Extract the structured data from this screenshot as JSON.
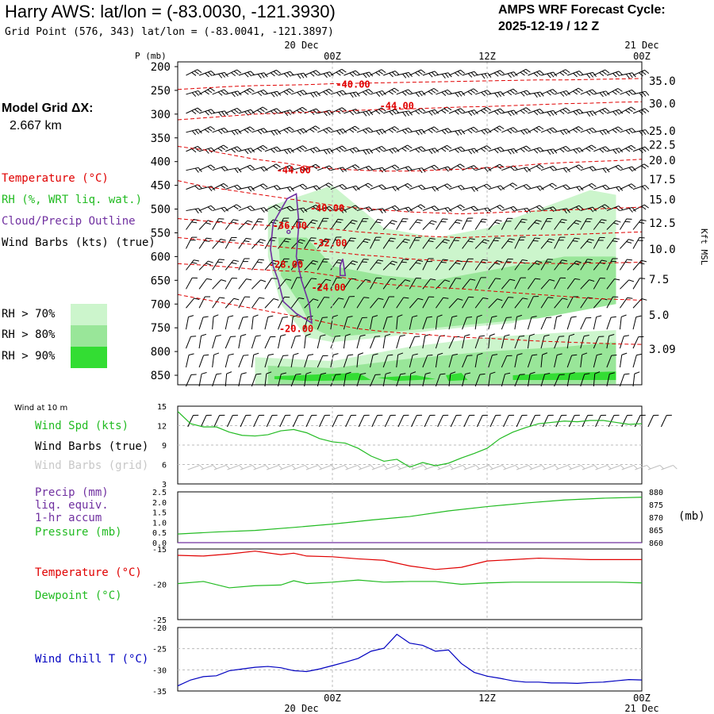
{
  "header": {
    "title": "Harry AWS:  lat/lon = (-83.0030, -121.3930)",
    "grid_point": "Grid Point (576, 343) lat/lon = (-83.0041, -121.3897)",
    "cycle_line1": "AMPS WRF Forecast Cycle:",
    "cycle_line2": "2025-12-19 / 12  Z",
    "model_grid_line1": "Model Grid ΔX:",
    "model_grid_line2": "2.667 km"
  },
  "time_axis": {
    "top_dates": [
      "20 Dec",
      "21 Dec"
    ],
    "top_hours": [
      "00Z",
      "12Z",
      "00Z"
    ],
    "bottom_hours": [
      "00Z",
      "12Z",
      "00Z"
    ],
    "bottom_dates": [
      "20 Dec",
      "21 Dec"
    ],
    "x_range_hours": [
      0,
      36
    ],
    "tick_hours": [
      12,
      24,
      36
    ],
    "tick_labels": [
      "00Z",
      "12Z",
      "00Z"
    ]
  },
  "legend_upper": {
    "temperature": "Temperature (°C)",
    "rh": "RH (%, WRT liq. wat.)",
    "cloud": "Cloud/Precip Outline",
    "wind": "Wind Barbs (kts) (true)",
    "rh70": "RH > 70%",
    "rh80": "RH > 80%",
    "rh90": "RH > 90%",
    "colors": {
      "temp": "#e00000",
      "rh": "#c0c0c0",
      "cloud": "#7030a0",
      "rh70": "#ccf5cc",
      "rh80": "#99e699",
      "rh90": "#33dd33"
    }
  },
  "chart_data": [
    {
      "type": "heatmap",
      "title": "Vertical cross-section (RH, temperature, cloud outline, wind barbs)",
      "ylabel_left": "P (mb)",
      "ylabel_right": "Kft MSL",
      "pressure_ticks": [
        200,
        250,
        300,
        350,
        400,
        450,
        500,
        550,
        600,
        650,
        700,
        750,
        800,
        850
      ],
      "kft_ticks": [
        "35.0",
        "30.0",
        "25.0",
        "22.5",
        "20.0",
        "17.5",
        "15.0",
        "12.5",
        "10.0",
        "7.5",
        "5.0",
        "3.09"
      ],
      "kft_levels_mb": [
        230,
        278,
        335,
        365,
        397,
        437,
        480,
        529,
        584,
        648,
        723,
        795
      ],
      "ylim": [
        870,
        190
      ],
      "temperature_contour_labels": [
        {
          "value": "-40.00",
          "hour": 13.6,
          "p": 238
        },
        {
          "value": "-44.00",
          "hour": 17.0,
          "p": 283
        },
        {
          "value": "-44.00",
          "hour": 9.0,
          "p": 418
        },
        {
          "value": "-40.00",
          "hour": 11.6,
          "p": 498
        },
        {
          "value": "-36.00",
          "hour": 8.7,
          "p": 535
        },
        {
          "value": "-32.00",
          "hour": 11.8,
          "p": 572
        },
        {
          "value": "-28.00",
          "hour": 8.4,
          "p": 617
        },
        {
          "value": "-24.00",
          "hour": 11.7,
          "p": 665
        },
        {
          "value": "-20.00",
          "hour": 9.2,
          "p": 752
        }
      ],
      "temperature_lines_p": [
        [
          248,
          245,
          242,
          240,
          239,
          238,
          236,
          235,
          234,
          233,
          232,
          231,
          230,
          229,
          228,
          228,
          227,
          226,
          225
        ],
        [
          312,
          308,
          304,
          300,
          298,
          296,
          295,
          292,
          290,
          289,
          287,
          285,
          284,
          282,
          280,
          278,
          277,
          275,
          274
        ],
        [
          368,
          375,
          385,
          395,
          402,
          410,
          415,
          418,
          420,
          420,
          418,
          416,
          413,
          410,
          405,
          402,
          400,
          398,
          395
        ],
        [
          440,
          452,
          460,
          468,
          476,
          484,
          492,
          498,
          502,
          506,
          508,
          510,
          508,
          506,
          504,
          502,
          500,
          498,
          496
        ],
        [
          520,
          525,
          530,
          533,
          536,
          538,
          542,
          548,
          552,
          556,
          558,
          560,
          558,
          556,
          555,
          554,
          552,
          550,
          548
        ],
        [
          560,
          565,
          570,
          575,
          580,
          585,
          590,
          596,
          600,
          605,
          608,
          610,
          612,
          613,
          614,
          615,
          614,
          613,
          612
        ],
        [
          615,
          618,
          622,
          627,
          630,
          632,
          640,
          650,
          658,
          662,
          665,
          668,
          672,
          676,
          680,
          684,
          688,
          690,
          692
        ],
        [
          680,
          690,
          700,
          710,
          720,
          730,
          742,
          752,
          758,
          762,
          766,
          770,
          772,
          775,
          778,
          780,
          782,
          784,
          785
        ]
      ],
      "cloud_outline": [
        [
          7.2,
          585
        ],
        [
          7.4,
          530
        ],
        [
          8.5,
          478
        ],
        [
          9.2,
          468
        ],
        [
          9.4,
          530
        ],
        [
          9.2,
          600
        ],
        [
          9.6,
          650
        ],
        [
          10.2,
          700
        ],
        [
          10.4,
          740
        ],
        [
          9.2,
          720
        ],
        [
          8.2,
          695
        ],
        [
          7.8,
          650
        ],
        [
          7.4,
          620
        ],
        [
          7.2,
          585
        ]
      ],
      "cloud_dot": [
        8.6,
        548
      ],
      "cloud_small_outline": [
        [
          12.6,
          620
        ],
        [
          12.8,
          605
        ],
        [
          13.0,
          640
        ],
        [
          12.6,
          640
        ]
      ],
      "rh_regions": [
        {
          "level": 70,
          "points": [
            [
              7,
              495
            ],
            [
              12,
              450
            ],
            [
              16,
              540
            ],
            [
              20,
              560
            ],
            [
              24,
              540
            ],
            [
              28,
              500
            ],
            [
              32,
              460
            ],
            [
              34,
              470
            ],
            [
              34,
              650
            ],
            [
              30,
              700
            ],
            [
              26,
              740
            ],
            [
              20,
              755
            ],
            [
              16,
              770
            ],
            [
              12,
              780
            ],
            [
              10,
              770
            ],
            [
              8,
              700
            ],
            [
              7,
              600
            ]
          ]
        },
        {
          "level": 70,
          "points": [
            [
              6,
              812
            ],
            [
              12,
              820
            ],
            [
              18,
              790
            ],
            [
              24,
              770
            ],
            [
              30,
              760
            ],
            [
              34,
              755
            ],
            [
              34,
              870
            ],
            [
              6,
              870
            ]
          ]
        },
        {
          "level": 80,
          "points": [
            [
              7.8,
              560
            ],
            [
              10,
              560
            ],
            [
              12,
              620
            ],
            [
              16,
              640
            ],
            [
              20,
              650
            ],
            [
              26,
              620
            ],
            [
              30,
              600
            ],
            [
              34,
              600
            ],
            [
              34,
              700
            ],
            [
              28,
              730
            ],
            [
              22,
              745
            ],
            [
              16,
              760
            ],
            [
              12,
              770
            ],
            [
              10.4,
              750
            ],
            [
              9.5,
              700
            ],
            [
              8,
              640
            ]
          ]
        },
        {
          "level": 80,
          "points": [
            [
              7,
              830
            ],
            [
              12,
              835
            ],
            [
              18,
              815
            ],
            [
              24,
              800
            ],
            [
              30,
              790
            ],
            [
              34,
              780
            ],
            [
              34,
              868
            ],
            [
              7,
              868
            ]
          ]
        },
        {
          "level": 90,
          "points": [
            [
              7.5,
              852
            ],
            [
              11,
              848
            ],
            [
              14,
              845
            ],
            [
              15,
              860
            ],
            [
              10,
              862
            ],
            [
              7.5,
              858
            ]
          ]
        },
        {
          "level": 90,
          "points": [
            [
              15.5,
              855
            ],
            [
              18.5,
              850
            ],
            [
              20,
              858
            ],
            [
              17,
              862
            ]
          ]
        },
        {
          "level": 90,
          "points": [
            [
              20.8,
              850
            ],
            [
              22,
              845
            ],
            [
              22.5,
              860
            ],
            [
              21,
              862
            ]
          ]
        },
        {
          "level": 90,
          "points": [
            [
              26,
              850
            ],
            [
              30,
              845
            ],
            [
              34,
              842
            ],
            [
              34,
              860
            ],
            [
              26,
              860
            ]
          ]
        }
      ],
      "wind_barbs_levels_mb": [
        205,
        245,
        285,
        325,
        365,
        405,
        445,
        490,
        530,
        570,
        615,
        655,
        695,
        740,
        780,
        820,
        860
      ],
      "wind_barbs_hours_step": 1
    },
    {
      "type": "line",
      "title": "Wind at 10 m",
      "xlabel": "",
      "ylabel": "Wind Spd (kts)",
      "ylim": [
        3,
        15
      ],
      "yticks": [
        3,
        6,
        9,
        12,
        15
      ],
      "labels": [
        "Wind Spd (kts)",
        "Wind Barbs (true)",
        "Wind Barbs (grid)"
      ],
      "x": [
        0,
        1,
        2,
        3,
        4,
        5,
        6,
        7,
        8,
        9,
        10,
        11,
        12,
        13,
        14,
        15,
        16,
        17,
        18,
        19,
        20,
        21,
        22,
        23,
        24,
        25,
        26,
        27,
        28,
        29,
        30,
        31,
        32,
        33,
        34,
        35,
        36
      ],
      "series": [
        {
          "name": "Wind Spd (kts)",
          "color": "#22bb22",
          "values": [
            14.2,
            12.3,
            11.8,
            11.8,
            11.0,
            10.5,
            10.4,
            10.6,
            11.2,
            11.4,
            10.9,
            10.0,
            9.5,
            9.3,
            8.5,
            7.3,
            6.5,
            6.8,
            5.6,
            6.3,
            5.8,
            6.2,
            7.0,
            7.7,
            8.5,
            10.0,
            11.0,
            11.7,
            12.3,
            12.5,
            12.7,
            12.6,
            12.8,
            12.8,
            12.5,
            12.2,
            12.3
          ]
        }
      ]
    },
    {
      "type": "line",
      "title": "Precip and Pressure",
      "ylabel": "Precip (mm) / Pressure (mb)",
      "labels": [
        "Precip (mm)",
        "liq. equiv.",
        "1-hr accum",
        "Pressure (mb)"
      ],
      "units_right": "(mb)",
      "ylim_left": [
        0.0,
        2.5
      ],
      "yticks_left": [
        "0.0",
        "0.5",
        "1.0",
        "1.5",
        "2.0",
        "2.5"
      ],
      "ylim_right": [
        860,
        880
      ],
      "yticks_right": [
        860,
        865,
        870,
        875,
        880
      ],
      "x": [
        0,
        3,
        6,
        9,
        12,
        15,
        18,
        21,
        24,
        27,
        30,
        33,
        36
      ],
      "series": [
        {
          "name": "Precip (mm)",
          "color": "#7030a0",
          "values": [
            0,
            0,
            0,
            0,
            0,
            0,
            0,
            0,
            0,
            0,
            0,
            0,
            0
          ]
        },
        {
          "name": "Pressure (mb)",
          "color": "#22bb22",
          "values": [
            863.4,
            864.2,
            864.8,
            866.0,
            867.3,
            868.9,
            870.3,
            872.5,
            874.2,
            875.6,
            876.8,
            877.5,
            877.9
          ]
        }
      ]
    },
    {
      "type": "line",
      "title": "Temperature and Dewpoint",
      "labels": [
        "Temperature (°C)",
        "Dewpoint (°C)"
      ],
      "ylim": [
        -25,
        -15
      ],
      "yticks": [
        -25,
        -20,
        -15
      ],
      "x": [
        0,
        2,
        4,
        6,
        8,
        9,
        10,
        12,
        14,
        16,
        18,
        20,
        22,
        24,
        26,
        28,
        30,
        32,
        34,
        36
      ],
      "series": [
        {
          "name": "Temperature (°C)",
          "color": "#e00000",
          "values": [
            -15.9,
            -16.0,
            -15.7,
            -15.3,
            -15.8,
            -15.6,
            -16.0,
            -16.1,
            -16.4,
            -16.6,
            -17.4,
            -17.9,
            -17.6,
            -16.7,
            -16.5,
            -16.3,
            -16.4,
            -16.5,
            -16.5,
            -16.5
          ]
        },
        {
          "name": "Dewpoint (°C)",
          "color": "#22bb22",
          "values": [
            -19.9,
            -19.6,
            -20.5,
            -20.2,
            -20.1,
            -19.5,
            -19.9,
            -19.7,
            -19.4,
            -19.7,
            -19.6,
            -19.6,
            -20.0,
            -19.8,
            -19.7,
            -19.7,
            -19.7,
            -19.7,
            -19.7,
            -19.8
          ]
        }
      ]
    },
    {
      "type": "line",
      "title": "Wind Chill T",
      "labels": [
        "Wind Chill T (°C)"
      ],
      "ylim": [
        -35,
        -20
      ],
      "yticks": [
        -35,
        -30,
        -25,
        -20
      ],
      "x": [
        0,
        1,
        2,
        3,
        4,
        5,
        6,
        7,
        8,
        9,
        10,
        11,
        12,
        13,
        14,
        15,
        16,
        17,
        18,
        19,
        20,
        21,
        22,
        23,
        24,
        25,
        26,
        27,
        28,
        29,
        30,
        31,
        32,
        33,
        34,
        35,
        36
      ],
      "series": [
        {
          "name": "Wind Chill T (°C)",
          "color": "#0000c0",
          "values": [
            -33.8,
            -32.4,
            -31.6,
            -31.4,
            -30.2,
            -29.8,
            -29.4,
            -29.2,
            -29.5,
            -30.2,
            -30.4,
            -29.8,
            -29.0,
            -28.2,
            -27.3,
            -25.6,
            -24.9,
            -21.6,
            -23.7,
            -24.2,
            -25.6,
            -25.3,
            -28.5,
            -30.6,
            -31.5,
            -32.0,
            -32.6,
            -32.9,
            -32.9,
            -33.1,
            -33.1,
            -33.2,
            -33.0,
            -32.9,
            -32.6,
            -32.3,
            -32.4
          ]
        }
      ]
    }
  ],
  "lower_labels": {
    "wind10m": "Wind at 10 m",
    "wspd": "Wind Spd (kts)",
    "wbarbs_true": "Wind Barbs (true)",
    "wbarbs_grid": "Wind Barbs (grid)",
    "precip1": "Precip (mm)",
    "precip2": "liq. equiv.",
    "precip3": "1-hr accum",
    "pressure": "Pressure (mb)",
    "mb_unit": "(mb)",
    "temperature": "Temperature (°C)",
    "dewpoint": "Dewpoint (°C)",
    "windchill": "Wind Chill T (°C)"
  }
}
